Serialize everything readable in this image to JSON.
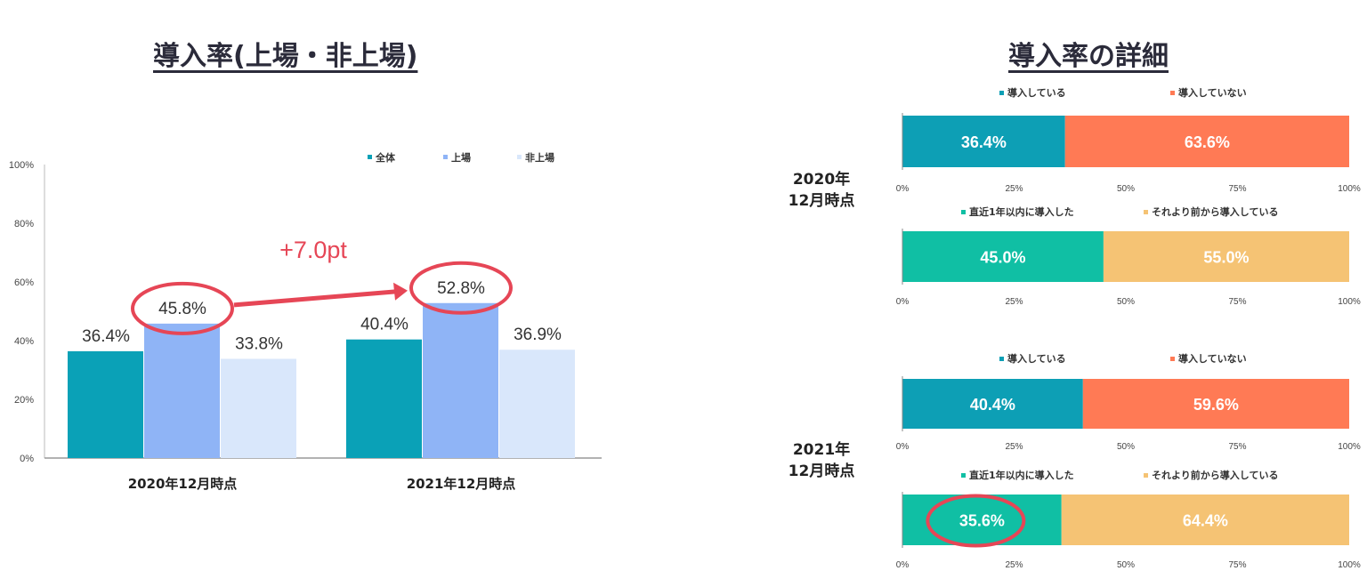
{
  "left_title": "導入率(上場・非上場)",
  "right_title": "導入率の詳細",
  "colors": {
    "zentai": "#0aa1b7",
    "jojo": "#8fb4f6",
    "hijojo": "#d9e7fb",
    "donyu": "#0d9fb5",
    "mi_donyu": "#ff7a55",
    "chokkin": "#10bfa4",
    "sorerimae": "#f5c374",
    "highlight": "#e64656"
  },
  "chart_data": [
    {
      "type": "bar",
      "categories": [
        "2020年12月時点",
        "2021年12月時点"
      ],
      "series": [
        {
          "name": "全体",
          "values": [
            36.4,
            40.4
          ]
        },
        {
          "name": "上場",
          "values": [
            45.8,
            52.8
          ]
        },
        {
          "name": "非上場",
          "values": [
            33.8,
            36.9
          ]
        }
      ],
      "value_labels": [
        [
          "36.4%",
          "45.8%",
          "33.8%"
        ],
        [
          "40.4%",
          "52.8%",
          "36.9%"
        ]
      ],
      "ylim": [
        0,
        100
      ],
      "yticks": [
        "0%",
        "20%",
        "40%",
        "60%",
        "80%",
        "100%"
      ],
      "legend": "top-right",
      "annotation": "+7.0pt"
    },
    {
      "type": "bar",
      "stacked": "horizontal-100",
      "groups": [
        {
          "label": "2020年\n12月時点",
          "bars": [
            {
              "legend": [
                "導入している",
                "導入していない"
              ],
              "values": [
                36.4,
                63.6
              ],
              "labels": [
                "36.4%",
                "63.6%"
              ]
            },
            {
              "legend": [
                "直近1年以内に導入した",
                "それより前から導入している"
              ],
              "values": [
                45.0,
                55.0
              ],
              "labels": [
                "45.0%",
                "55.0%"
              ]
            }
          ]
        },
        {
          "label": "2021年\n12月時点",
          "bars": [
            {
              "legend": [
                "導入している",
                "導入していない"
              ],
              "values": [
                40.4,
                59.6
              ],
              "labels": [
                "40.4%",
                "59.6%"
              ]
            },
            {
              "legend": [
                "直近1年以内に導入した",
                "それより前から導入している"
              ],
              "values": [
                35.6,
                64.4
              ],
              "labels": [
                "35.6%",
                "64.4%"
              ]
            }
          ]
        }
      ],
      "xticks": [
        "0%",
        "25%",
        "50%",
        "75%",
        "100%"
      ],
      "xlim": [
        0,
        100
      ]
    }
  ]
}
